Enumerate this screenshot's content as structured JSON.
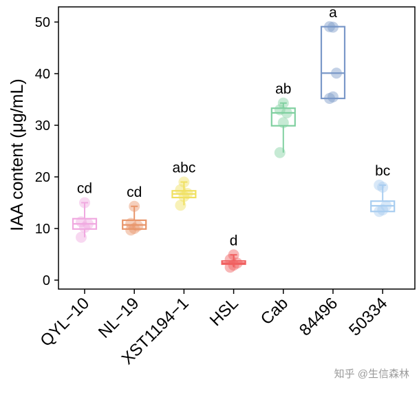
{
  "chart_data": {
    "type": "box",
    "title": "",
    "xlabel": "",
    "ylabel": "IAA content (μg/mL)",
    "ylim": [
      -1.5,
      53
    ],
    "yticks": [
      0,
      10,
      20,
      30,
      40,
      50
    ],
    "grid": false,
    "categories": [
      "QYL−10",
      "NL−19",
      "XST1194−1",
      "HSL",
      "Cab",
      "84496",
      "50334"
    ],
    "boxes": [
      {
        "min": 8.3,
        "q1": 9.9,
        "median": 10.9,
        "q3": 11.9,
        "max": 15.0,
        "points": [
          8.3,
          10.2,
          10.9,
          11.3,
          15.0
        ],
        "letter": "cd",
        "color": "#f0a8e0"
      },
      {
        "min": 9.7,
        "q1": 9.9,
        "median": 10.7,
        "q3": 11.6,
        "max": 14.3,
        "points": [
          9.7,
          10.0,
          10.5,
          11.0,
          14.3
        ],
        "letter": "cd",
        "color": "#e8956a"
      },
      {
        "min": 14.5,
        "q1": 16.0,
        "median": 16.7,
        "q3": 17.3,
        "max": 19.0,
        "points": [
          14.5,
          16.2,
          16.8,
          17.5,
          19.0
        ],
        "letter": "abc",
        "color": "#f0e060"
      },
      {
        "min": 2.5,
        "q1": 3.1,
        "median": 3.3,
        "q3": 3.7,
        "max": 4.9,
        "points": [
          2.5,
          2.9,
          3.3,
          4.0,
          4.9
        ],
        "letter": "d",
        "color": "#f06060"
      },
      {
        "min": 24.7,
        "q1": 29.9,
        "median": 32.4,
        "q3": 33.3,
        "max": 34.3,
        "points": [
          24.7,
          30.5,
          32.4,
          33.0,
          34.3
        ],
        "letter": "ab",
        "color": "#80d0a0"
      },
      {
        "min": 35.2,
        "q1": 35.2,
        "median": 40.1,
        "q3": 49.1,
        "max": 49.1,
        "points": [
          35.2,
          35.5,
          40.1,
          49.1,
          49.0
        ],
        "letter": "a",
        "color": "#7a98c8"
      },
      {
        "min": 13.3,
        "q1": 13.3,
        "median": 14.4,
        "q3": 15.3,
        "max": 18.4,
        "points": [
          13.3,
          13.6,
          14.4,
          18.4,
          18.0
        ],
        "letter": "bc",
        "color": "#a8cdf0"
      }
    ]
  },
  "watermark": "知乎 @生信森林"
}
